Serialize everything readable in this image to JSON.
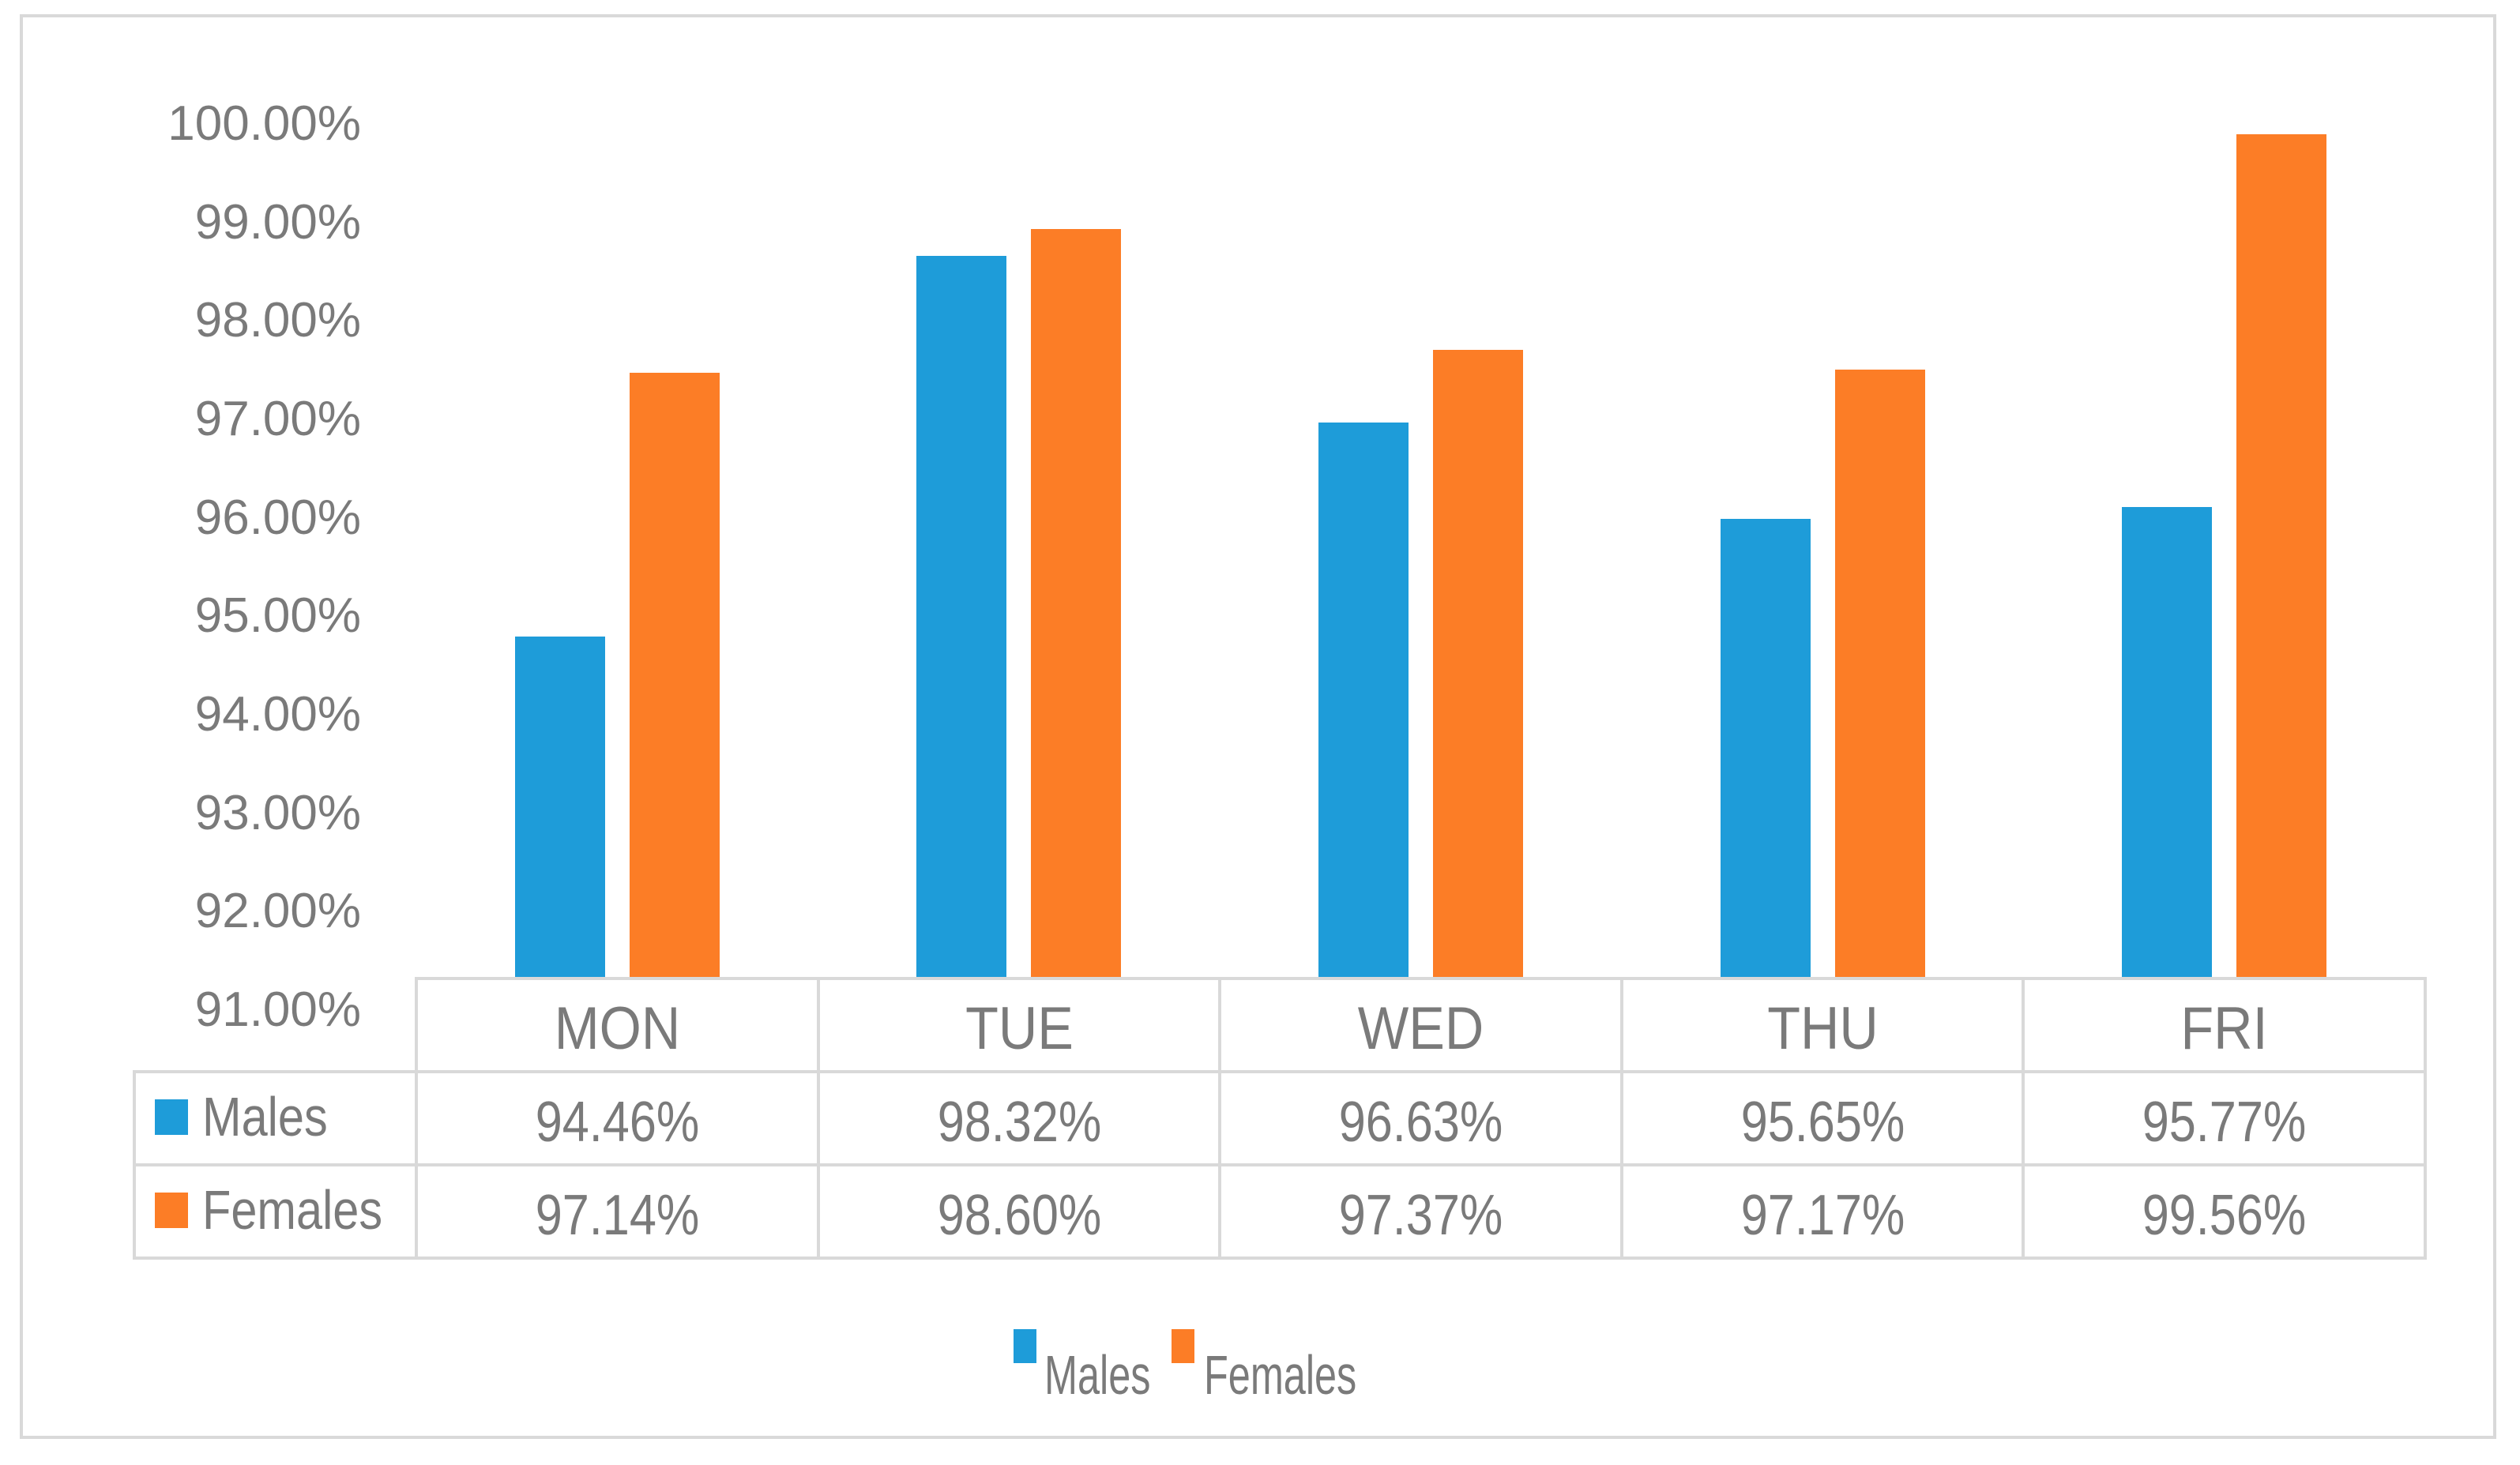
{
  "chart_data": {
    "type": "bar",
    "title": "",
    "categories": [
      "MON",
      "TUE",
      "WED",
      "THU",
      "FRI"
    ],
    "series": [
      {
        "name": "Males",
        "color": "#1E9CD9",
        "values": [
          94.46,
          98.32,
          96.63,
          95.65,
          95.77
        ],
        "labels": [
          "94.46%",
          "98.32%",
          "96.63%",
          "95.65%",
          "95.77%"
        ]
      },
      {
        "name": "Females",
        "color": "#FC7D26",
        "values": [
          97.14,
          98.6,
          97.37,
          97.17,
          99.56
        ],
        "labels": [
          "97.14%",
          "98.60%",
          "97.37%",
          "97.17%",
          "99.56%"
        ]
      }
    ],
    "y_axis": {
      "min": 91,
      "max": 100,
      "step": 1,
      "tick_labels": [
        "100.00%",
        "99.00%",
        "98.00%",
        "97.00%",
        "96.00%",
        "95.00%",
        "94.00%",
        "93.00%",
        "92.00%",
        "91.00%"
      ]
    },
    "legend": {
      "position": "bottom",
      "entries": [
        "Males",
        "Females"
      ]
    },
    "has_data_table": true,
    "gridlines": false,
    "styles": {
      "text_color": "#7A7A7A",
      "border_color": "#D9D9D9",
      "background": "#FFFFFF"
    }
  }
}
